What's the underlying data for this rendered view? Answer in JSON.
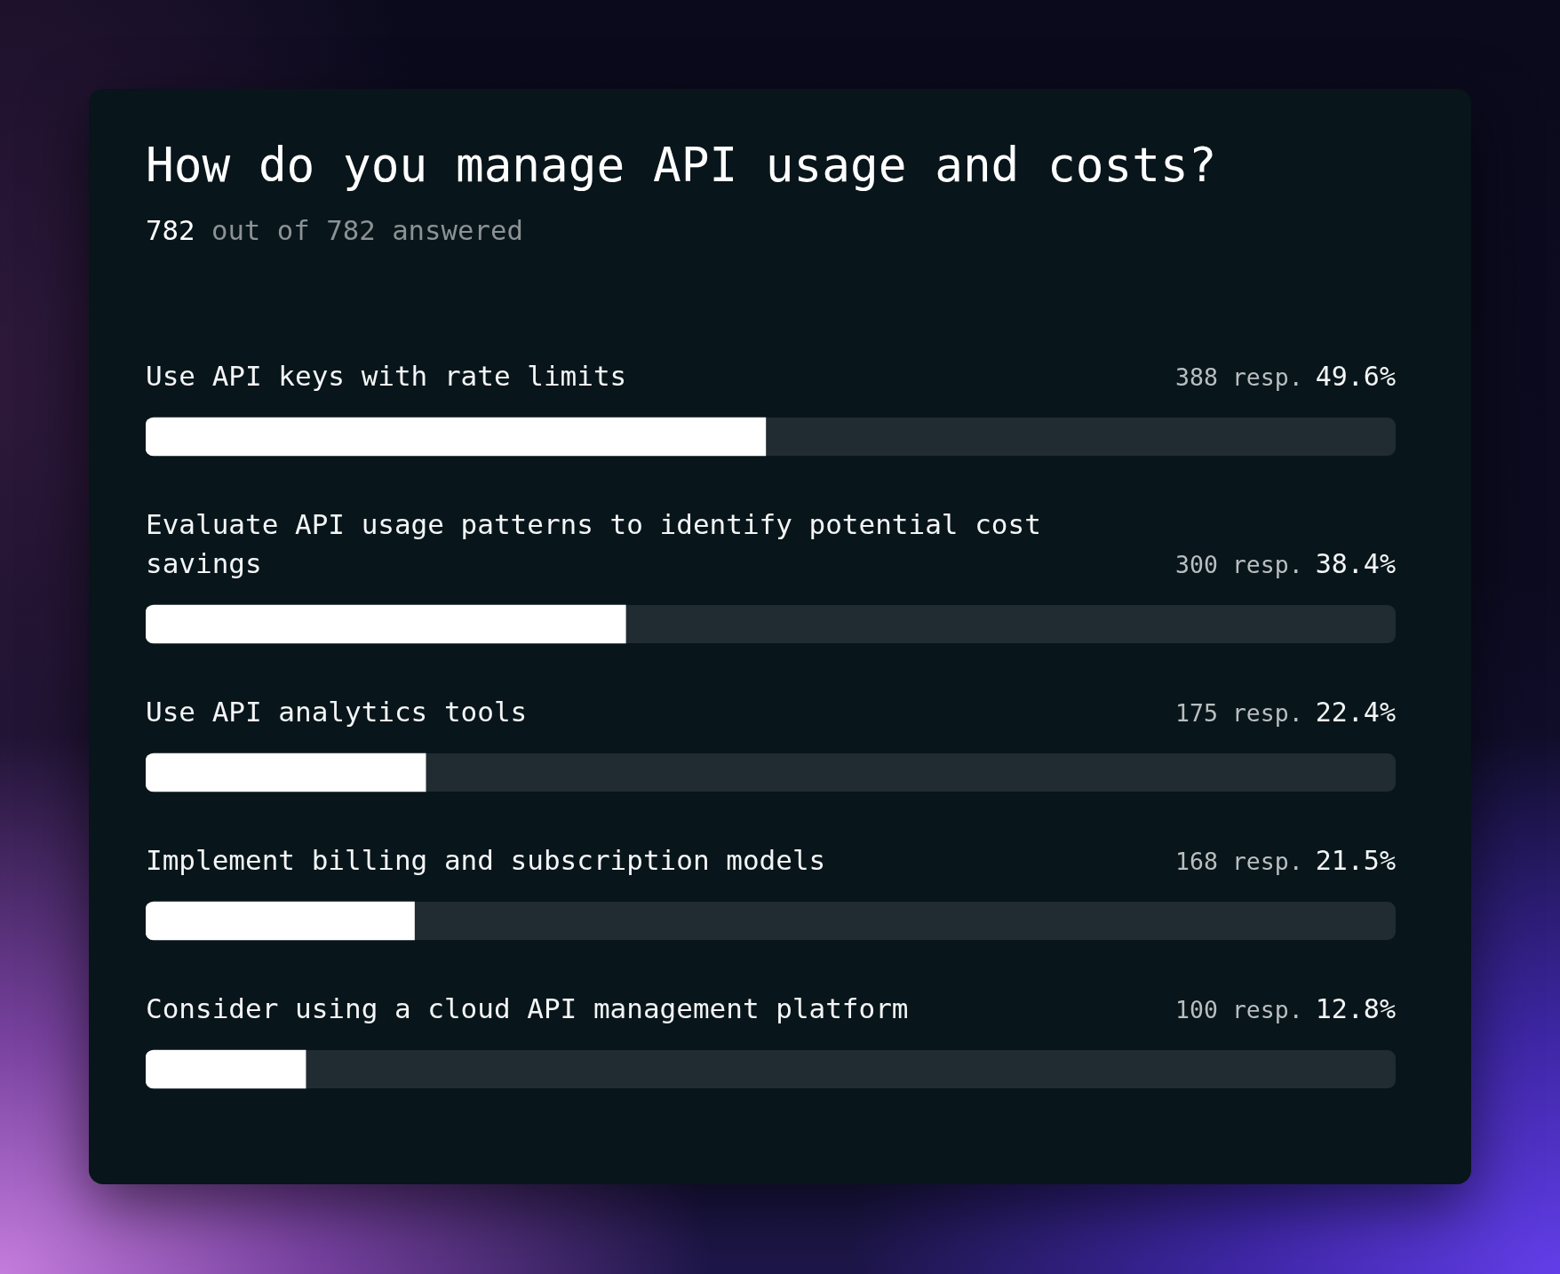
{
  "chart_data": {
    "type": "bar",
    "orientation": "horizontal",
    "title": "How do you manage API usage and costs?",
    "subtitle": "782 out of 782 answered",
    "categories": [
      "Use API keys with rate limits",
      "Evaluate API usage patterns to identify potential cost savings",
      "Use API analytics tools",
      "Implement billing and subscription models",
      "Consider using a cloud API management platform"
    ],
    "values": [
      49.6,
      38.4,
      22.4,
      21.5,
      12.8
    ],
    "color": "#ffffff",
    "xlim": [
      0,
      100
    ],
    "value_labels": [
      "388 resp. 49.6%",
      "300 resp. 38.4%",
      "175 resp. 22.4%",
      "168 resp. 21.5%",
      "100 resp. 12.8%"
    ],
    "tick_labels": "y"
  }
}
